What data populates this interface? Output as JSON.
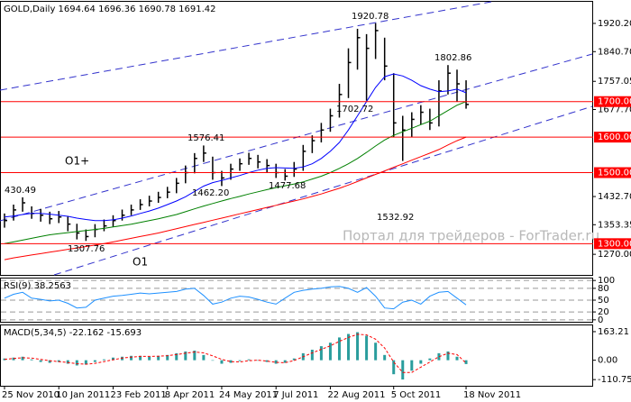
{
  "chart_data": [
    {
      "type": "ohlc",
      "title": "GOLD,Daily  1694.64 1696.36 1690.78 1691.42",
      "categories": [
        "25 Nov 2010",
        null,
        null,
        null,
        null,
        null,
        "10 Jan 2011",
        null,
        null,
        null,
        null,
        null,
        "23 Feb 2011",
        null,
        null,
        null,
        null,
        null,
        "8 Apr 2011",
        null,
        null,
        null,
        null,
        null,
        "24 May 2011",
        null,
        null,
        null,
        null,
        null,
        "7 Jul 2011",
        null,
        null,
        null,
        null,
        null,
        "22 Aug 2011",
        null,
        null,
        null,
        null,
        null,
        null,
        "5 Oct 2011",
        null,
        null,
        null,
        null,
        null,
        null,
        null,
        "18 Nov 2011"
      ],
      "high": [
        1385,
        1410,
        1430.49,
        1405,
        1398,
        1390,
        1392,
        1378,
        1356,
        1340,
        1355,
        1368,
        1380,
        1396,
        1410,
        1425,
        1435,
        1446,
        1460,
        1485,
        1520,
        1555,
        1576.41,
        1545,
        1505,
        1525,
        1540,
        1556,
        1550,
        1538,
        1525,
        1510,
        1530,
        1578,
        1605,
        1640,
        1680,
        1750,
        1850,
        1905,
        1890,
        1920.78,
        1880,
        1780,
        1660,
        1670,
        1690,
        1680,
        1760,
        1802.86,
        1790,
        1760
      ],
      "low": [
        1345,
        1365,
        1390,
        1370,
        1362,
        1355,
        1358,
        1335,
        1312,
        1307.76,
        1318,
        1335,
        1348,
        1365,
        1380,
        1395,
        1405,
        1415,
        1428,
        1442,
        1470,
        1498,
        1530,
        1480,
        1462.2,
        1480,
        1505,
        1522,
        1512,
        1500,
        1485,
        1477.68,
        1488,
        1505,
        1555,
        1585,
        1615,
        1655,
        1710,
        1790,
        1702.72,
        1820,
        1760,
        1600,
        1532.92,
        1600,
        1635,
        1620,
        1630,
        1720,
        1700,
        1680
      ],
      "close": [
        1365,
        1395,
        1415,
        1385,
        1380,
        1370,
        1375,
        1355,
        1330,
        1320,
        1340,
        1350,
        1365,
        1380,
        1395,
        1410,
        1420,
        1430,
        1445,
        1470,
        1500,
        1540,
        1555,
        1500,
        1485,
        1510,
        1525,
        1540,
        1530,
        1520,
        1500,
        1490,
        1510,
        1560,
        1590,
        1620,
        1660,
        1720,
        1810,
        1880,
        1850,
        1900,
        1800,
        1640,
        1620,
        1650,
        1670,
        1640,
        1730,
        1780,
        1750,
        1692
      ],
      "color": "#000000",
      "series": [
        {
          "color": "#0000ff",
          "values": [
            1375,
            1378,
            1382,
            1385,
            1385,
            1383,
            1380,
            1377,
            1372,
            1368,
            1365,
            1365,
            1367,
            1372,
            1378,
            1385,
            1392,
            1400,
            1410,
            1420,
            1432,
            1447,
            1462,
            1472,
            1478,
            1485,
            1492,
            1500,
            1507,
            1512,
            1514,
            1513,
            1512,
            1516,
            1525,
            1540,
            1560,
            1585,
            1620,
            1660,
            1700,
            1740,
            1770,
            1778,
            1772,
            1760,
            1745,
            1735,
            1728,
            1730,
            1735,
            1725
          ]
        },
        {
          "color": "#008000",
          "values": [
            1300,
            1305,
            1310,
            1315,
            1320,
            1325,
            1328,
            1331,
            1334,
            1337,
            1340,
            1343,
            1347,
            1351,
            1355,
            1360,
            1365,
            1370,
            1376,
            1382,
            1390,
            1398,
            1406,
            1413,
            1420,
            1427,
            1433,
            1440,
            1446,
            1452,
            1458,
            1463,
            1468,
            1474,
            1482,
            1490,
            1500,
            1512,
            1525,
            1540,
            1557,
            1575,
            1592,
            1605,
            1615,
            1625,
            1635,
            1645,
            1660,
            1675,
            1690,
            1700
          ]
        },
        {
          "color": "#ff0000",
          "values": [
            1255,
            1260,
            1264,
            1268,
            1272,
            1276,
            1280,
            1284,
            1288,
            1292,
            1296,
            1300,
            1305,
            1310,
            1315,
            1320,
            1325,
            1330,
            1336,
            1342,
            1348,
            1354,
            1360,
            1366,
            1372,
            1378,
            1384,
            1390,
            1396,
            1402,
            1408,
            1414,
            1420,
            1426,
            1433,
            1440,
            1448,
            1456,
            1465,
            1475,
            1485,
            1495,
            1505,
            1515,
            1525,
            1535,
            1545,
            1555,
            1565,
            1578,
            1590,
            1600
          ]
        }
      ],
      "ylim": [
        1212,
        1981
      ],
      "yticks": [
        {
          "value": 1920.2,
          "label": "1920.20"
        },
        {
          "value": 1840.7,
          "label": "1840.70"
        },
        1757.05,
        {
          "value": 1677.7,
          "label": "1677.70"
        },
        {
          "value": 1432.7,
          "label": "1432.70"
        },
        1353.35,
        {
          "value": 1270,
          "label": "1270.00"
        }
      ],
      "levels": [
        {
          "value": 1700,
          "label": "1700.00"
        },
        {
          "value": 1600,
          "label": "1600.00"
        },
        {
          "value": 1500,
          "label": "1500.00"
        },
        {
          "value": 1300,
          "label": "1300.00"
        }
      ],
      "level_color": "#ff0000",
      "annotations": [
        "430.49",
        "1307.76",
        "1576.41",
        "1462.20",
        "1477.68",
        "1702.72",
        "1920.78",
        "1532.92",
        "1802.86",
        "O1+",
        "O1"
      ],
      "watermark": "Портал для трейдеров - ForTrader.ru"
    },
    {
      "type": "line",
      "title": "RSI(9) 38.2563",
      "color": "#1e90ff",
      "values": [
        55,
        65,
        70,
        55,
        52,
        48,
        50,
        42,
        30,
        32,
        50,
        55,
        60,
        62,
        65,
        68,
        66,
        68,
        70,
        72,
        78,
        80,
        62,
        40,
        45,
        55,
        60,
        58,
        52,
        45,
        40,
        55,
        70,
        75,
        78,
        80,
        84,
        85,
        80,
        70,
        82,
        60,
        30,
        28,
        45,
        50,
        40,
        60,
        70,
        72,
        55,
        38
      ],
      "ylim": [
        -5,
        105
      ],
      "yticks": [
        0,
        20,
        50,
        80,
        100
      ],
      "grid": true
    },
    {
      "type": "bar",
      "title": "MACD(5,34,5) -22.162 -15.693",
      "color": "#2a9d9d",
      "values": [
        10,
        15,
        20,
        5,
        -10,
        -15,
        -10,
        -20,
        -30,
        -25,
        -10,
        5,
        15,
        20,
        25,
        25,
        20,
        25,
        30,
        40,
        50,
        55,
        30,
        0,
        -20,
        -15,
        -5,
        5,
        0,
        -10,
        -20,
        -15,
        10,
        40,
        60,
        80,
        100,
        130,
        150,
        160,
        140,
        100,
        30,
        -80,
        -110,
        -60,
        -20,
        10,
        40,
        50,
        20,
        -22
      ],
      "series": [
        {
          "color": "#ff0000",
          "dash": true,
          "values": [
            5,
            10,
            14,
            12,
            5,
            -3,
            -8,
            -13,
            -20,
            -23,
            -18,
            -8,
            3,
            12,
            18,
            22,
            22,
            23,
            26,
            32,
            40,
            47,
            42,
            25,
            5,
            -8,
            -10,
            -3,
            0,
            -5,
            -12,
            -14,
            -2,
            20,
            42,
            62,
            82,
            108,
            130,
            148,
            145,
            120,
            70,
            -10,
            -70,
            -70,
            -40,
            -10,
            20,
            40,
            32,
            -16
          ]
        }
      ],
      "ylim": [
        -146,
        199
      ],
      "yticks": [
        163.21,
        {
          "value": 0,
          "label": "0.00"
        },
        -110.751
      ]
    }
  ]
}
